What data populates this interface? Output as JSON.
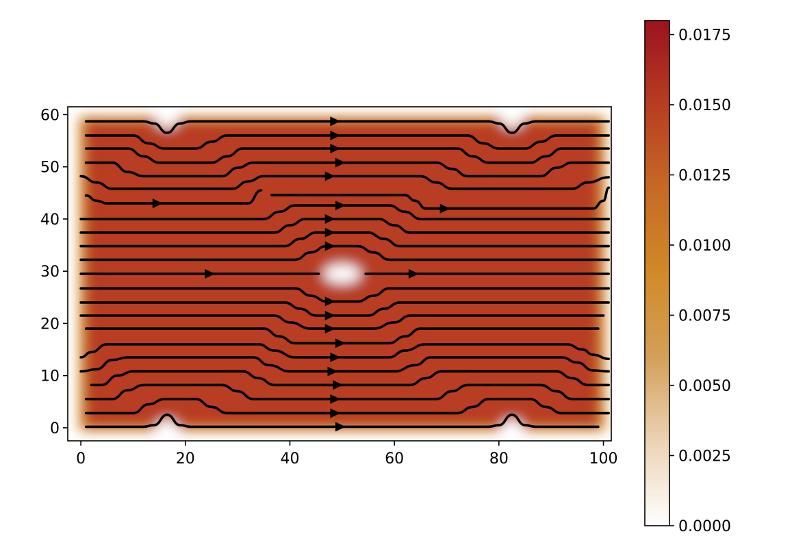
{
  "chart_data": {
    "type": "heatmap",
    "subtype": "streamplot-over-density",
    "title": "",
    "xlabel": "",
    "ylabel": "",
    "xlim": [
      -2.5,
      101.5
    ],
    "ylim": [
      -2.5,
      61.5
    ],
    "x_ticks": [
      0,
      20,
      40,
      60,
      80,
      100
    ],
    "x_tick_labels": [
      "0",
      "20",
      "40",
      "60",
      "80",
      "100"
    ],
    "y_ticks": [
      0,
      10,
      20,
      30,
      40,
      50,
      60
    ],
    "y_tick_labels": [
      "0",
      "10",
      "20",
      "30",
      "40",
      "50",
      "60"
    ],
    "colorbar": {
      "min": 0.0,
      "max": 0.018,
      "ticks": [
        0.0,
        0.0025,
        0.005,
        0.0075,
        0.01,
        0.0125,
        0.015,
        0.0175
      ],
      "tick_labels": [
        "0.0000",
        "0.0025",
        "0.0050",
        "0.0075",
        "0.0100",
        "0.0125",
        "0.0150",
        "0.0175"
      ],
      "colors": [
        "#ffffff",
        "#ecd3b5",
        "#d3a05a",
        "#d18a27",
        "#c66a26",
        "#b83e22",
        "#9b121e"
      ]
    },
    "field": {
      "x_range": [
        0,
        100
      ],
      "y_range": [
        0,
        59
      ],
      "background_value": 0.0152,
      "edge_value": 0.008,
      "low_density_regions": [
        {
          "name": "center-obstacle",
          "x": 50,
          "y": 29.5,
          "rx": 3.5,
          "ry": 1.8,
          "value": 0.0
        },
        {
          "name": "top-left-notch",
          "x": 16.5,
          "y": 59,
          "rx": 2.0,
          "ry": 1.5,
          "value": 0.0
        },
        {
          "name": "top-right-notch",
          "x": 82.5,
          "y": 59,
          "rx": 2.0,
          "ry": 1.5,
          "value": 0.0
        },
        {
          "name": "bottom-left-notch",
          "x": 16.5,
          "y": 0,
          "rx": 2.0,
          "ry": 1.5,
          "value": 0.0
        },
        {
          "name": "bottom-right-notch",
          "x": 82.5,
          "y": 0,
          "rx": 2.0,
          "ry": 1.5,
          "value": 0.0
        }
      ]
    },
    "streamlines": [
      {
        "points": [
          [
            1,
            0.2
          ],
          [
            12,
            0.2
          ],
          [
            14,
            0.5
          ],
          [
            16.5,
            2.5
          ],
          [
            19,
            0.5
          ],
          [
            21,
            0.2
          ],
          [
            78,
            0.2
          ],
          [
            80,
            0.5
          ],
          [
            82.5,
            2.5
          ],
          [
            85,
            0.5
          ],
          [
            87,
            0.2
          ],
          [
            99,
            0.2
          ]
        ]
      },
      {
        "points": [
          [
            1,
            2.8
          ],
          [
            10,
            2.8
          ],
          [
            13,
            4.5
          ],
          [
            16,
            5.5
          ],
          [
            22,
            5.5
          ],
          [
            25,
            4.0
          ],
          [
            28,
            2.8
          ],
          [
            72,
            2.8
          ],
          [
            75,
            4.0
          ],
          [
            78,
            5.5
          ],
          [
            86,
            5.5
          ],
          [
            89,
            4.0
          ],
          [
            92,
            2.8
          ],
          [
            101,
            2.8
          ]
        ]
      },
      {
        "points": [
          [
            1,
            5.5
          ],
          [
            6,
            5.5
          ],
          [
            9,
            7.2
          ],
          [
            12,
            8.2
          ],
          [
            27,
            8.2
          ],
          [
            30,
            7.0
          ],
          [
            33,
            5.5
          ],
          [
            68,
            5.5
          ],
          [
            71,
            7.0
          ],
          [
            74,
            8.2
          ],
          [
            88,
            8.2
          ],
          [
            91,
            7.0
          ],
          [
            94,
            5.5
          ],
          [
            101,
            5.5
          ]
        ]
      },
      {
        "points": [
          [
            2,
            8.2
          ],
          [
            4,
            8.2
          ],
          [
            7,
            10.0
          ],
          [
            10,
            10.8
          ],
          [
            31,
            10.8
          ],
          [
            34,
            9.5
          ],
          [
            37,
            8.2
          ],
          [
            63,
            8.2
          ],
          [
            66,
            9.5
          ],
          [
            69,
            10.8
          ],
          [
            91,
            10.8
          ],
          [
            94,
            9.5
          ],
          [
            97,
            8.2
          ],
          [
            101,
            8.2
          ]
        ]
      },
      {
        "points": [
          [
            0,
            10.8
          ],
          [
            3,
            11.2
          ],
          [
            6,
            13.0
          ],
          [
            9,
            13.5
          ],
          [
            33,
            13.5
          ],
          [
            36,
            12.0
          ],
          [
            40,
            10.8
          ],
          [
            60,
            10.8
          ],
          [
            64,
            12.0
          ],
          [
            67,
            13.5
          ],
          [
            92,
            13.5
          ],
          [
            95,
            12.5
          ],
          [
            98,
            11.0
          ],
          [
            101,
            10.8
          ]
        ]
      },
      {
        "points": [
          [
            0,
            13.5
          ],
          [
            2,
            14.5
          ],
          [
            5,
            16.0
          ],
          [
            8,
            16.0
          ],
          [
            34,
            16.0
          ],
          [
            37,
            14.8
          ],
          [
            41,
            13.5
          ],
          [
            59,
            13.5
          ],
          [
            62,
            14.8
          ],
          [
            66,
            16.0
          ],
          [
            93,
            16.0
          ],
          [
            96,
            15.0
          ],
          [
            98,
            14.0
          ],
          [
            101,
            13.2
          ]
        ]
      },
      {
        "points": [
          [
            1,
            19.0
          ],
          [
            35,
            19.0
          ],
          [
            38,
            17.5
          ],
          [
            41,
            16.2
          ],
          [
            59,
            16.2
          ],
          [
            62,
            17.5
          ],
          [
            65,
            19.0
          ],
          [
            99,
            19.0
          ]
        ]
      },
      {
        "points": [
          [
            0,
            21.5
          ],
          [
            37,
            21.5
          ],
          [
            40,
            20.2
          ],
          [
            44,
            19.0
          ],
          [
            56,
            19.0
          ],
          [
            60,
            20.2
          ],
          [
            63,
            21.5
          ],
          [
            100,
            21.5
          ]
        ]
      },
      {
        "points": [
          [
            0,
            24.0
          ],
          [
            39,
            24.0
          ],
          [
            42,
            22.8
          ],
          [
            45,
            21.5
          ],
          [
            55,
            21.5
          ],
          [
            58,
            22.8
          ],
          [
            61,
            24.0
          ],
          [
            101,
            24.0
          ]
        ]
      },
      {
        "points": [
          [
            0,
            26.7
          ],
          [
            41,
            26.7
          ],
          [
            44,
            25.3
          ],
          [
            47,
            24.2
          ],
          [
            53,
            24.2
          ],
          [
            56,
            25.3
          ],
          [
            59,
            26.7
          ],
          [
            101,
            26.7
          ]
        ]
      },
      {
        "points": [
          [
            0,
            29.5
          ],
          [
            45.5,
            29.5
          ]
        ]
      },
      {
        "points": [
          [
            54.5,
            29.5
          ],
          [
            101,
            29.5
          ]
        ]
      },
      {
        "points": [
          [
            0,
            32.2
          ],
          [
            41,
            32.2
          ],
          [
            44,
            33.6
          ],
          [
            47,
            34.8
          ],
          [
            53,
            34.8
          ],
          [
            56,
            33.6
          ],
          [
            59,
            32.2
          ],
          [
            101,
            32.2
          ]
        ]
      },
      {
        "points": [
          [
            0,
            34.8
          ],
          [
            39,
            34.8
          ],
          [
            42,
            36.2
          ],
          [
            45,
            37.4
          ],
          [
            55,
            37.4
          ],
          [
            58,
            36.2
          ],
          [
            61,
            34.8
          ],
          [
            101,
            34.8
          ]
        ]
      },
      {
        "points": [
          [
            0,
            37.4
          ],
          [
            37,
            37.4
          ],
          [
            40,
            38.8
          ],
          [
            43,
            40.0
          ],
          [
            57,
            40.0
          ],
          [
            60,
            38.8
          ],
          [
            63,
            37.4
          ],
          [
            101,
            37.4
          ]
        ]
      },
      {
        "points": [
          [
            0,
            40.0
          ],
          [
            35,
            40.0
          ],
          [
            38,
            41.4
          ],
          [
            41,
            42.6
          ],
          [
            59,
            42.6
          ],
          [
            62,
            41.4
          ],
          [
            65,
            40.0
          ],
          [
            101,
            40.0
          ]
        ]
      },
      {
        "points": [
          [
            1,
            44.5
          ],
          [
            3,
            43.5
          ],
          [
            5,
            43.0
          ],
          [
            32,
            43.0
          ],
          [
            34.5,
            45.5
          ]
        ]
      },
      {
        "points": [
          [
            36.5,
            44.6
          ],
          [
            62,
            44.6
          ],
          [
            64,
            43.5
          ],
          [
            66,
            42.0
          ],
          [
            98,
            42.0
          ],
          [
            100,
            43.5
          ],
          [
            101,
            46.0
          ]
        ]
      },
      {
        "points": [
          [
            0,
            48.2
          ],
          [
            3,
            47.0
          ],
          [
            6,
            45.8
          ],
          [
            29,
            45.8
          ],
          [
            32,
            47.2
          ],
          [
            35,
            48.2
          ],
          [
            65,
            48.2
          ],
          [
            68,
            47.0
          ],
          [
            71,
            45.8
          ],
          [
            94,
            45.8
          ],
          [
            97,
            47.0
          ],
          [
            101,
            48.0
          ]
        ]
      },
      {
        "points": [
          [
            1,
            50.8
          ],
          [
            6,
            50.8
          ],
          [
            9,
            49.0
          ],
          [
            12,
            48.2
          ],
          [
            27,
            48.2
          ],
          [
            30,
            49.8
          ],
          [
            33,
            50.8
          ],
          [
            68,
            50.8
          ],
          [
            71,
            49.6
          ],
          [
            74,
            48.2
          ],
          [
            88,
            48.2
          ],
          [
            91,
            49.8
          ],
          [
            94,
            50.8
          ],
          [
            101,
            50.8
          ]
        ]
      },
      {
        "points": [
          [
            1,
            53.5
          ],
          [
            9,
            53.5
          ],
          [
            12,
            52.0
          ],
          [
            15,
            50.8
          ],
          [
            25,
            50.8
          ],
          [
            28,
            52.0
          ],
          [
            31,
            53.5
          ],
          [
            72,
            53.5
          ],
          [
            75,
            52.0
          ],
          [
            78,
            50.8
          ],
          [
            86,
            50.8
          ],
          [
            89,
            52.0
          ],
          [
            92,
            53.5
          ],
          [
            101,
            53.5
          ]
        ]
      },
      {
        "points": [
          [
            1,
            56.0
          ],
          [
            10,
            56.0
          ],
          [
            13,
            54.5
          ],
          [
            16,
            53.5
          ],
          [
            22,
            53.5
          ],
          [
            25,
            54.8
          ],
          [
            28,
            56.0
          ],
          [
            74,
            56.0
          ],
          [
            77,
            54.5
          ],
          [
            80,
            53.5
          ],
          [
            85,
            53.5
          ],
          [
            88,
            54.8
          ],
          [
            91,
            56.0
          ],
          [
            101,
            56.0
          ]
        ]
      },
      {
        "points": [
          [
            1,
            58.7
          ],
          [
            12,
            58.7
          ],
          [
            14,
            58.3
          ],
          [
            16.5,
            56.5
          ],
          [
            19,
            58.3
          ],
          [
            21,
            58.7
          ],
          [
            78,
            58.7
          ],
          [
            80,
            58.3
          ],
          [
            82.5,
            56.5
          ],
          [
            85,
            58.3
          ],
          [
            87,
            58.7
          ],
          [
            101,
            58.7
          ]
        ]
      }
    ],
    "arrows": [
      {
        "x": 49.5,
        "y": 0.2
      },
      {
        "x": 48.5,
        "y": 2.8
      },
      {
        "x": 48.5,
        "y": 5.5
      },
      {
        "x": 49.0,
        "y": 8.2
      },
      {
        "x": 48.0,
        "y": 10.8
      },
      {
        "x": 48.5,
        "y": 13.5
      },
      {
        "x": 49.5,
        "y": 16.2
      },
      {
        "x": 47.5,
        "y": 19.0
      },
      {
        "x": 47.5,
        "y": 21.5
      },
      {
        "x": 47.5,
        "y": 24.2
      },
      {
        "x": 24.5,
        "y": 29.5
      },
      {
        "x": 63.5,
        "y": 29.5
      },
      {
        "x": 47.5,
        "y": 34.8
      },
      {
        "x": 47.5,
        "y": 37.4
      },
      {
        "x": 47.5,
        "y": 40.0
      },
      {
        "x": 49.5,
        "y": 42.6
      },
      {
        "x": 14.5,
        "y": 43.0
      },
      {
        "x": 69.5,
        "y": 42.0
      },
      {
        "x": 47.5,
        "y": 48.2
      },
      {
        "x": 49.5,
        "y": 50.8
      },
      {
        "x": 48.5,
        "y": 53.5
      },
      {
        "x": 48.5,
        "y": 56.0
      },
      {
        "x": 48.5,
        "y": 58.7
      }
    ]
  }
}
